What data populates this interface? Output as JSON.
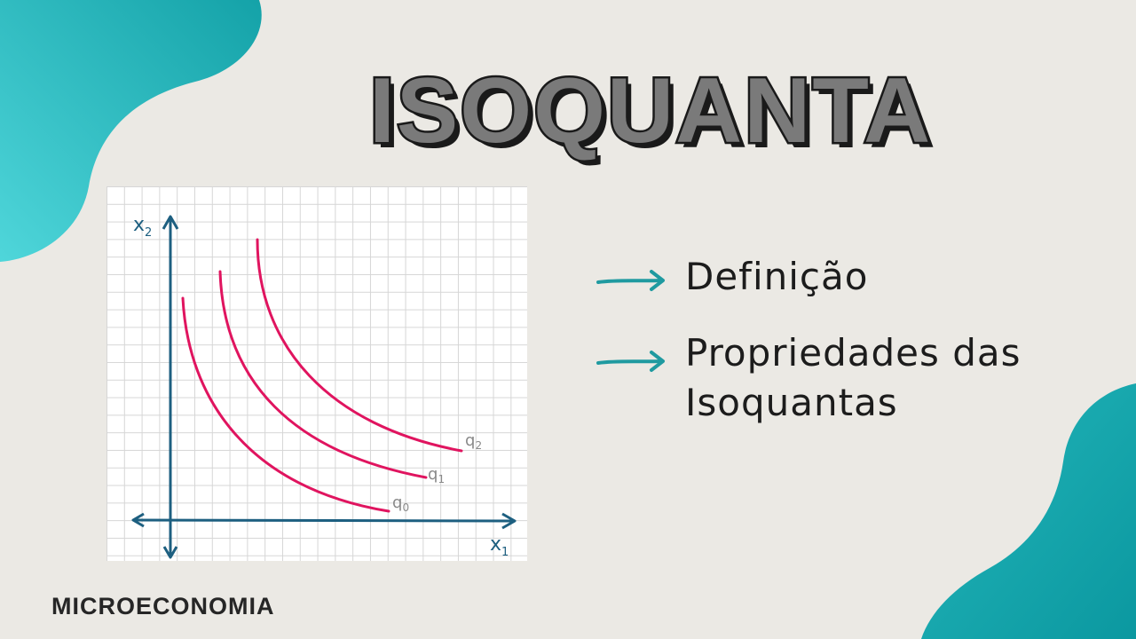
{
  "title": "ISOQUANTA",
  "subject": "MICROECONOMIA",
  "topics": [
    "Definição",
    "Propriedades das Isoquantas"
  ],
  "graph": {
    "y_axis_label": "x2",
    "x_axis_label": "x1",
    "curves": [
      {
        "label": "q0",
        "color": "#e0145f"
      },
      {
        "label": "q1",
        "color": "#e0145f"
      },
      {
        "label": "q2",
        "color": "#e0145f"
      }
    ]
  },
  "colors": {
    "background": "#ebe9e4",
    "teal": "#2fb9bd",
    "axis": "#1d5f80",
    "title_fill": "#7a7a7a",
    "title_outline": "#1a1a1a",
    "curve": "#e0145f",
    "arrow": "#1f9aa0"
  },
  "icons": [
    "right-arrow-icon",
    "right-arrow-icon"
  ]
}
